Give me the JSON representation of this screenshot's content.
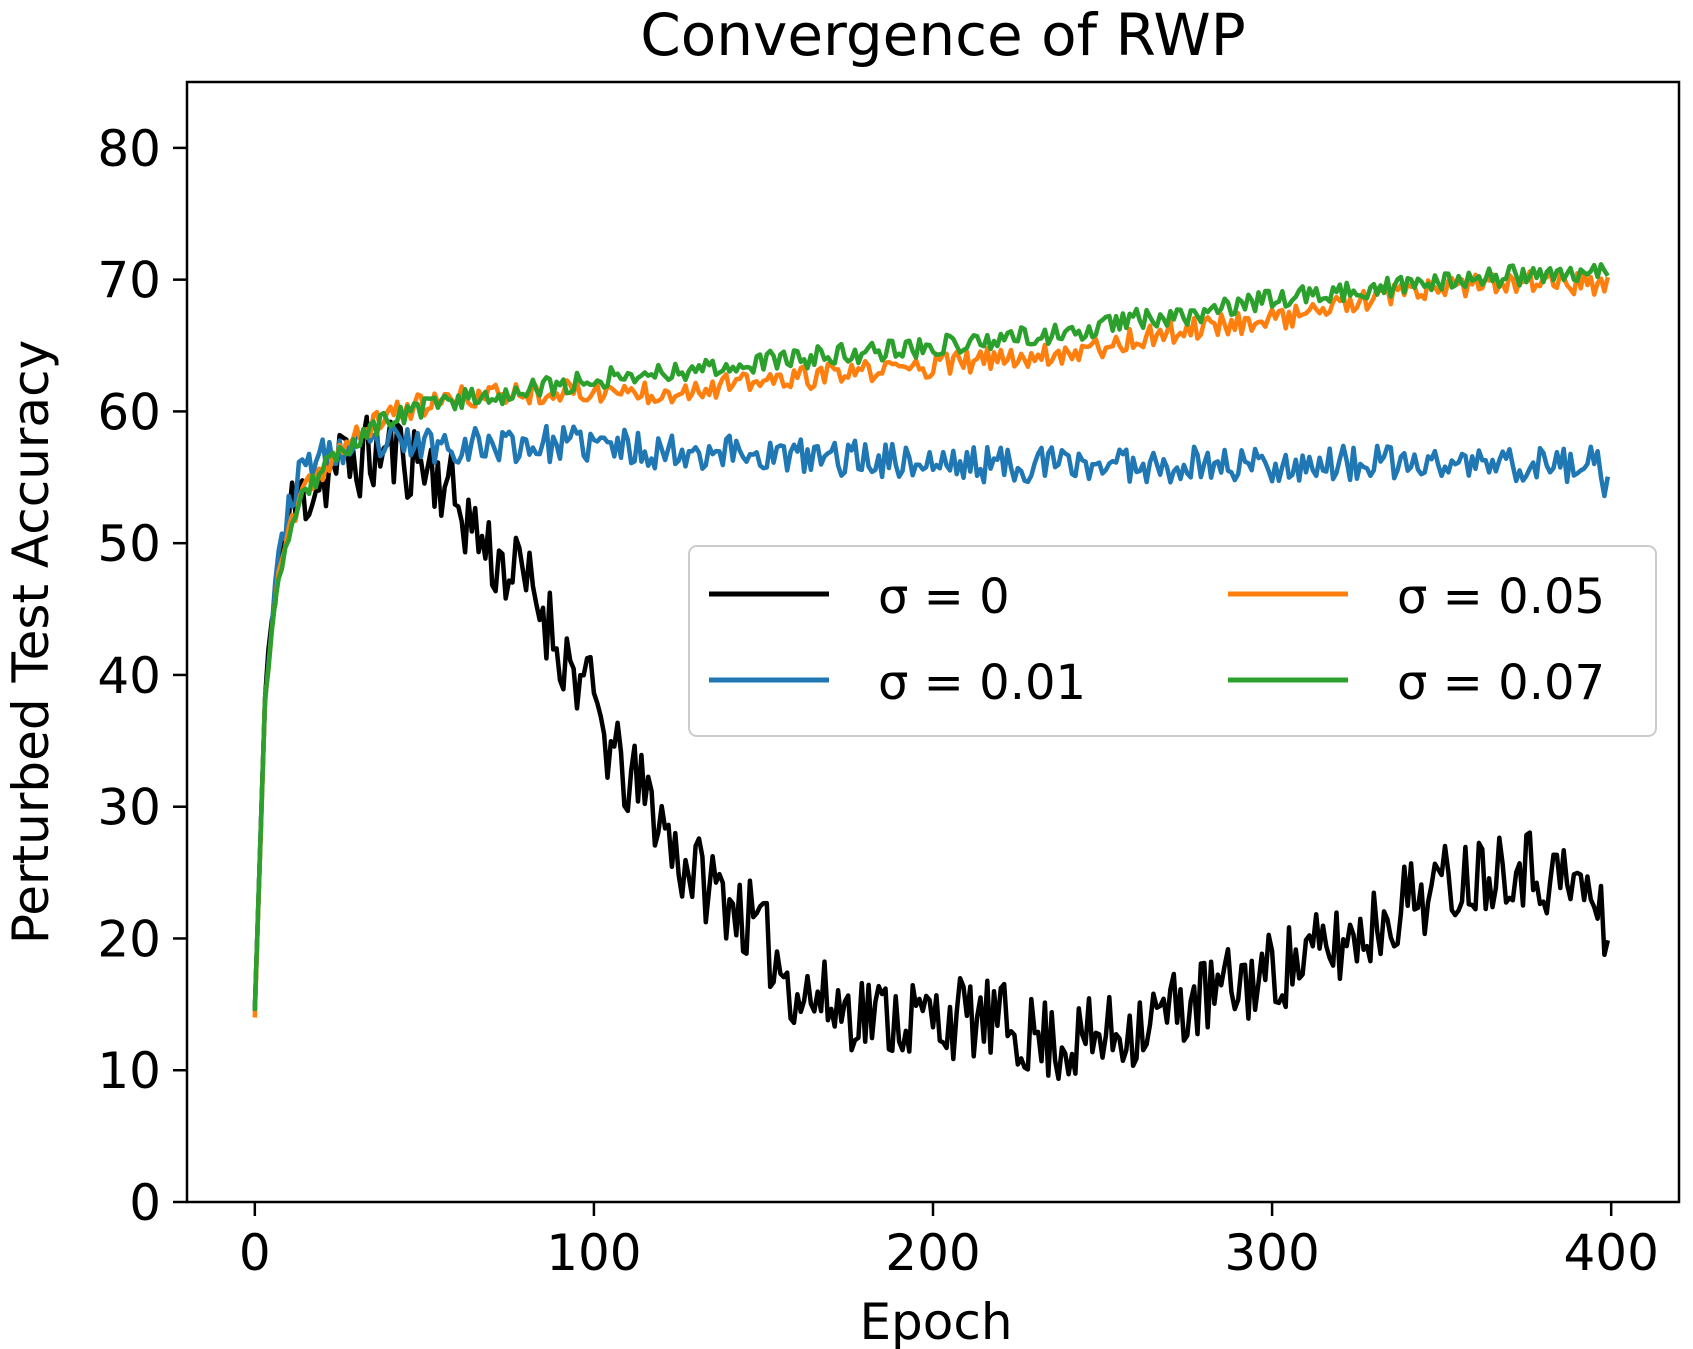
{
  "chart_data": {
    "type": "line",
    "title": "Convergence of RWP",
    "xlabel": "Epoch",
    "ylabel": "Perturbed Test Accuracy",
    "xlim": [
      -20,
      420
    ],
    "ylim": [
      0,
      85
    ],
    "xticks": [
      0,
      100,
      200,
      300,
      400
    ],
    "xtick_labels": [
      "0",
      "100",
      "200",
      "300",
      "400"
    ],
    "yticks": [
      0,
      10,
      20,
      30,
      40,
      50,
      60,
      70,
      80
    ],
    "ytick_labels": [
      "0",
      "10",
      "20",
      "30",
      "40",
      "50",
      "60",
      "70",
      "80"
    ],
    "legend_location": "center-right",
    "legend_columns": 2,
    "series": [
      {
        "name": "σ = 0",
        "legend_label": "σ = 0",
        "color": "#000000",
        "noise": 3.2,
        "seed": 11,
        "keypoints": [
          [
            0,
            14.5
          ],
          [
            3,
            38
          ],
          [
            6,
            47
          ],
          [
            10,
            52
          ],
          [
            15,
            54
          ],
          [
            25,
            56
          ],
          [
            40,
            57
          ],
          [
            50,
            56
          ],
          [
            55,
            55
          ],
          [
            60,
            53
          ],
          [
            65,
            51
          ],
          [
            70,
            49
          ],
          [
            75,
            48
          ],
          [
            80,
            47
          ],
          [
            85,
            45
          ],
          [
            90,
            42
          ],
          [
            95,
            40
          ],
          [
            100,
            38
          ],
          [
            105,
            34
          ],
          [
            110,
            32
          ],
          [
            115,
            31
          ],
          [
            120,
            29
          ],
          [
            125,
            26
          ],
          [
            130,
            25
          ],
          [
            140,
            23
          ],
          [
            150,
            20
          ],
          [
            160,
            16
          ],
          [
            170,
            15
          ],
          [
            180,
            14.5
          ],
          [
            190,
            14
          ],
          [
            200,
            14
          ],
          [
            210,
            14
          ],
          [
            220,
            13.5
          ],
          [
            230,
            12.5
          ],
          [
            240,
            12
          ],
          [
            250,
            12.5
          ],
          [
            260,
            13.5
          ],
          [
            270,
            14.5
          ],
          [
            280,
            15.5
          ],
          [
            290,
            16.5
          ],
          [
            300,
            17.5
          ],
          [
            310,
            18.5
          ],
          [
            320,
            19.5
          ],
          [
            330,
            21
          ],
          [
            340,
            23
          ],
          [
            350,
            24
          ],
          [
            360,
            25
          ],
          [
            370,
            26
          ],
          [
            380,
            25
          ],
          [
            390,
            24
          ],
          [
            395,
            23
          ],
          [
            399,
            19
          ]
        ]
      },
      {
        "name": "σ = 0.01",
        "legend_label": "σ = 0.01",
        "color": "#1f77b4",
        "noise": 1.4,
        "seed": 23,
        "keypoints": [
          [
            0,
            14.5
          ],
          [
            3,
            38
          ],
          [
            6,
            47
          ],
          [
            10,
            53
          ],
          [
            15,
            56
          ],
          [
            25,
            57
          ],
          [
            40,
            57.5
          ],
          [
            60,
            57.5
          ],
          [
            80,
            57.5
          ],
          [
            100,
            57.5
          ],
          [
            120,
            57
          ],
          [
            140,
            57
          ],
          [
            160,
            56.5
          ],
          [
            180,
            56.5
          ],
          [
            200,
            56
          ],
          [
            220,
            56
          ],
          [
            240,
            56
          ],
          [
            260,
            56
          ],
          [
            280,
            56
          ],
          [
            300,
            56
          ],
          [
            320,
            56
          ],
          [
            340,
            56
          ],
          [
            360,
            56
          ],
          [
            380,
            56
          ],
          [
            395,
            56
          ],
          [
            399,
            54.5
          ]
        ]
      },
      {
        "name": "σ = 0.05",
        "legend_label": "σ = 0.05",
        "color": "#ff7f0e",
        "noise": 0.9,
        "seed": 37,
        "keypoints": [
          [
            0,
            14
          ],
          [
            3,
            38
          ],
          [
            6,
            46
          ],
          [
            10,
            51
          ],
          [
            15,
            54
          ],
          [
            25,
            57
          ],
          [
            40,
            60
          ],
          [
            60,
            61
          ],
          [
            80,
            61.5
          ],
          [
            100,
            61.5
          ],
          [
            120,
            61.5
          ],
          [
            140,
            62
          ],
          [
            160,
            62.5
          ],
          [
            180,
            63
          ],
          [
            200,
            63.5
          ],
          [
            220,
            64
          ],
          [
            240,
            64.5
          ],
          [
            260,
            65.5
          ],
          [
            280,
            66.5
          ],
          [
            300,
            67
          ],
          [
            320,
            68
          ],
          [
            340,
            69
          ],
          [
            360,
            69.5
          ],
          [
            380,
            70
          ],
          [
            399,
            69.5
          ]
        ]
      },
      {
        "name": "σ = 0.07",
        "legend_label": "σ = 0.07",
        "color": "#2ca02c",
        "noise": 0.8,
        "seed": 53,
        "keypoints": [
          [
            0,
            14.5
          ],
          [
            3,
            38
          ],
          [
            6,
            46
          ],
          [
            10,
            50
          ],
          [
            15,
            54
          ],
          [
            25,
            57
          ],
          [
            40,
            59.5
          ],
          [
            60,
            61
          ],
          [
            80,
            61.5
          ],
          [
            100,
            62.5
          ],
          [
            120,
            63
          ],
          [
            140,
            63.5
          ],
          [
            160,
            64
          ],
          [
            180,
            64.5
          ],
          [
            200,
            65
          ],
          [
            220,
            65.5
          ],
          [
            240,
            66
          ],
          [
            260,
            67
          ],
          [
            280,
            67.5
          ],
          [
            300,
            68.5
          ],
          [
            320,
            69
          ],
          [
            340,
            69.5
          ],
          [
            360,
            70
          ],
          [
            380,
            70.5
          ],
          [
            399,
            70.5
          ]
        ]
      }
    ]
  }
}
